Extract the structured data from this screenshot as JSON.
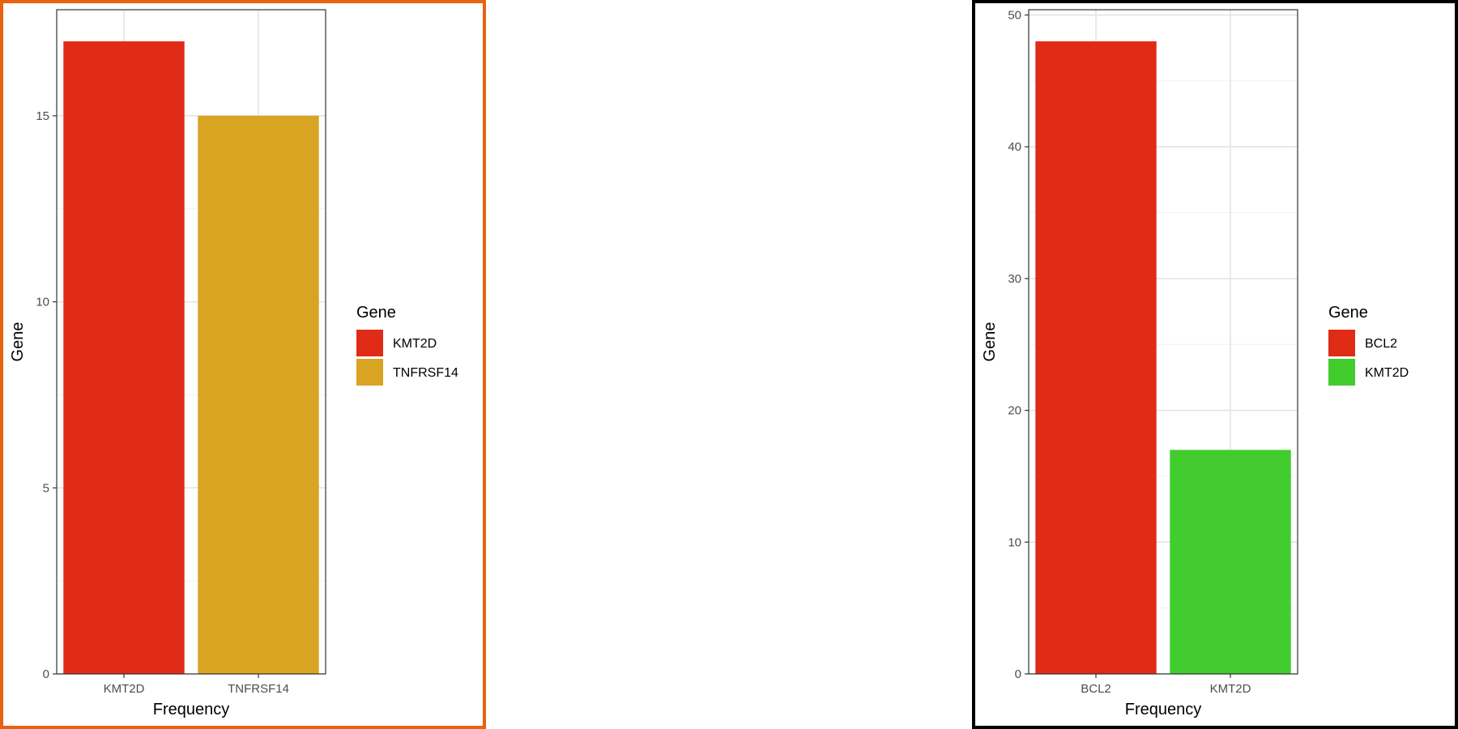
{
  "chart_data": [
    {
      "type": "bar",
      "categories": [
        "KMT2D",
        "TNFRSF14"
      ],
      "values": [
        17,
        15
      ],
      "colors": [
        "#E02B17",
        "#D8A422"
      ],
      "xlabel": "Frequency",
      "ylabel": "Gene",
      "ylim": [
        0,
        17.85
      ],
      "yticks": [
        0,
        5,
        10,
        15
      ],
      "grid": true,
      "legend": {
        "title": "Gene",
        "position": "right",
        "entries": [
          {
            "label": "KMT2D",
            "color": "#E02B17"
          },
          {
            "label": "TNFRSF14",
            "color": "#D8A422"
          }
        ]
      },
      "frame_color": "#e8620f"
    },
    {
      "type": "bar",
      "categories": [
        "BCL2",
        "KMT2D"
      ],
      "values": [
        48,
        17
      ],
      "colors": [
        "#E02B17",
        "#42CC2E"
      ],
      "xlabel": "Frequency",
      "ylabel": "Gene",
      "ylim": [
        0,
        50.4
      ],
      "yticks": [
        0,
        10,
        20,
        30,
        40,
        50
      ],
      "grid": true,
      "legend": {
        "title": "Gene",
        "position": "right",
        "entries": [
          {
            "label": "BCL2",
            "color": "#E02B17"
          },
          {
            "label": "KMT2D",
            "color": "#42CC2E"
          }
        ]
      },
      "frame_color": "#000000"
    }
  ]
}
